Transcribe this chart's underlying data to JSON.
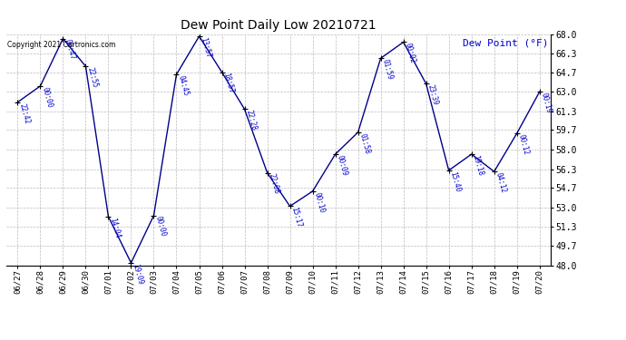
{
  "title": "Dew Point Daily Low 20210721",
  "ylabel": "Dew Point (°F)",
  "copyright": "Copyright 2021 Cartronics.com",
  "bg_color": "#ffffff",
  "line_color": "#00008B",
  "marker_color": "#000000",
  "label_color": "#0000CD",
  "grid_color": "#bbbbbb",
  "ylim": [
    48.0,
    68.0
  ],
  "yticks": [
    48.0,
    49.7,
    51.3,
    53.0,
    54.7,
    56.3,
    58.0,
    59.7,
    61.3,
    63.0,
    64.7,
    66.3,
    68.0
  ],
  "points": [
    {
      "x": 0,
      "date": "06/27",
      "time": "22:42",
      "value": 62.1
    },
    {
      "x": 1,
      "date": "06/28",
      "time": "00:00",
      "value": 63.5
    },
    {
      "x": 2,
      "date": "06/29",
      "time": "00:47",
      "value": 67.6
    },
    {
      "x": 3,
      "date": "06/30",
      "time": "22:55",
      "value": 65.2
    },
    {
      "x": 4,
      "date": "07/01",
      "time": "14:04",
      "value": 52.2
    },
    {
      "x": 5,
      "date": "07/02",
      "time": "19:09",
      "value": 48.2
    },
    {
      "x": 6,
      "date": "07/03",
      "time": "00:00",
      "value": 52.3
    },
    {
      "x": 7,
      "date": "07/04",
      "time": "04:45",
      "value": 64.5
    },
    {
      "x": 8,
      "date": "07/05",
      "time": "13:57",
      "value": 67.8
    },
    {
      "x": 9,
      "date": "07/06",
      "time": "18:57",
      "value": 64.7
    },
    {
      "x": 10,
      "date": "07/07",
      "time": "22:28",
      "value": 61.5
    },
    {
      "x": 11,
      "date": "07/08",
      "time": "22:08",
      "value": 56.0
    },
    {
      "x": 12,
      "date": "07/09",
      "time": "15:17",
      "value": 53.1
    },
    {
      "x": 13,
      "date": "07/10",
      "time": "00:10",
      "value": 54.4
    },
    {
      "x": 14,
      "date": "07/11",
      "time": "00:09",
      "value": 57.6
    },
    {
      "x": 15,
      "date": "07/12",
      "time": "01:58",
      "value": 59.5
    },
    {
      "x": 16,
      "date": "07/13",
      "time": "01:59",
      "value": 65.9
    },
    {
      "x": 17,
      "date": "07/14",
      "time": "00:02",
      "value": 67.3
    },
    {
      "x": 18,
      "date": "07/15",
      "time": "23:39",
      "value": 63.7
    },
    {
      "x": 19,
      "date": "07/16",
      "time": "15:40",
      "value": 56.2
    },
    {
      "x": 20,
      "date": "07/17",
      "time": "19:18",
      "value": 57.6
    },
    {
      "x": 21,
      "date": "07/18",
      "time": "04:12",
      "value": 56.1
    },
    {
      "x": 22,
      "date": "07/19",
      "time": "00:12",
      "value": 59.4
    },
    {
      "x": 23,
      "date": "07/20",
      "time": "00:19",
      "value": 63.0
    }
  ]
}
